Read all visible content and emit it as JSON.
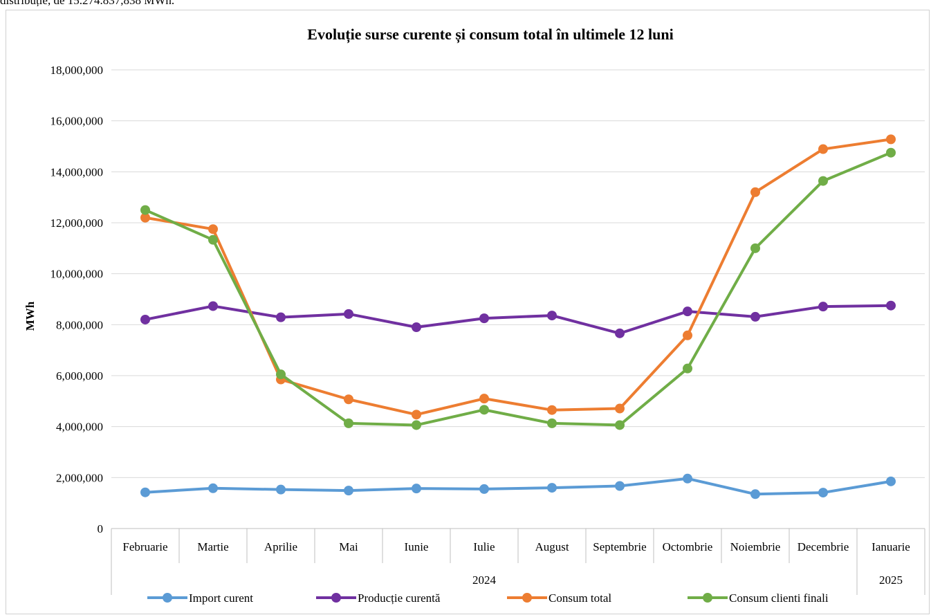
{
  "header_text": "distribuție, de 15.274.837,838 MWh.",
  "chart_data": {
    "type": "line",
    "title": "Evoluție surse curente și consum total în ultimele 12 luni",
    "ylabel": "MWh",
    "xlabel": "",
    "ylim": [
      0,
      18000000
    ],
    "yticks": [
      0,
      2000000,
      4000000,
      6000000,
      8000000,
      10000000,
      12000000,
      14000000,
      16000000,
      18000000
    ],
    "ytick_labels": [
      "0",
      "2,000,000",
      "4,000,000",
      "6,000,000",
      "8,000,000",
      "10,000,000",
      "12,000,000",
      "14,000,000",
      "16,000,000",
      "18,000,000"
    ],
    "categories": [
      "Februarie",
      "Martie",
      "Aprilie",
      "Mai",
      "Iunie",
      "Iulie",
      "August",
      "Septembrie",
      "Octombrie",
      "Noiembrie",
      "Decembrie",
      "Ianuarie"
    ],
    "year_groups": [
      {
        "label": "2024",
        "start": 0,
        "end": 10
      },
      {
        "label": "2025",
        "start": 11,
        "end": 11
      }
    ],
    "grid": true,
    "legend_position": "bottom",
    "series": [
      {
        "name": "Import curent",
        "color": "#5b9bd5",
        "values": [
          1420000,
          1580000,
          1530000,
          1490000,
          1570000,
          1550000,
          1600000,
          1670000,
          1960000,
          1350000,
          1410000,
          1850000
        ]
      },
      {
        "name": "Producție curentă",
        "color": "#7030a0",
        "values": [
          8200000,
          8730000,
          8290000,
          8420000,
          7900000,
          8250000,
          8360000,
          7660000,
          8520000,
          8310000,
          8710000,
          8750000
        ]
      },
      {
        "name": "Consum total",
        "color": "#ed7d31",
        "values": [
          12200000,
          11750000,
          5850000,
          5070000,
          4470000,
          5100000,
          4650000,
          4710000,
          7580000,
          13200000,
          14890000,
          15274838
        ]
      },
      {
        "name": "Consum clienti finali",
        "color": "#70ad47",
        "values": [
          12500000,
          11330000,
          6050000,
          4130000,
          4060000,
          4660000,
          4130000,
          4060000,
          6280000,
          11000000,
          13640000,
          14750000
        ]
      }
    ]
  }
}
